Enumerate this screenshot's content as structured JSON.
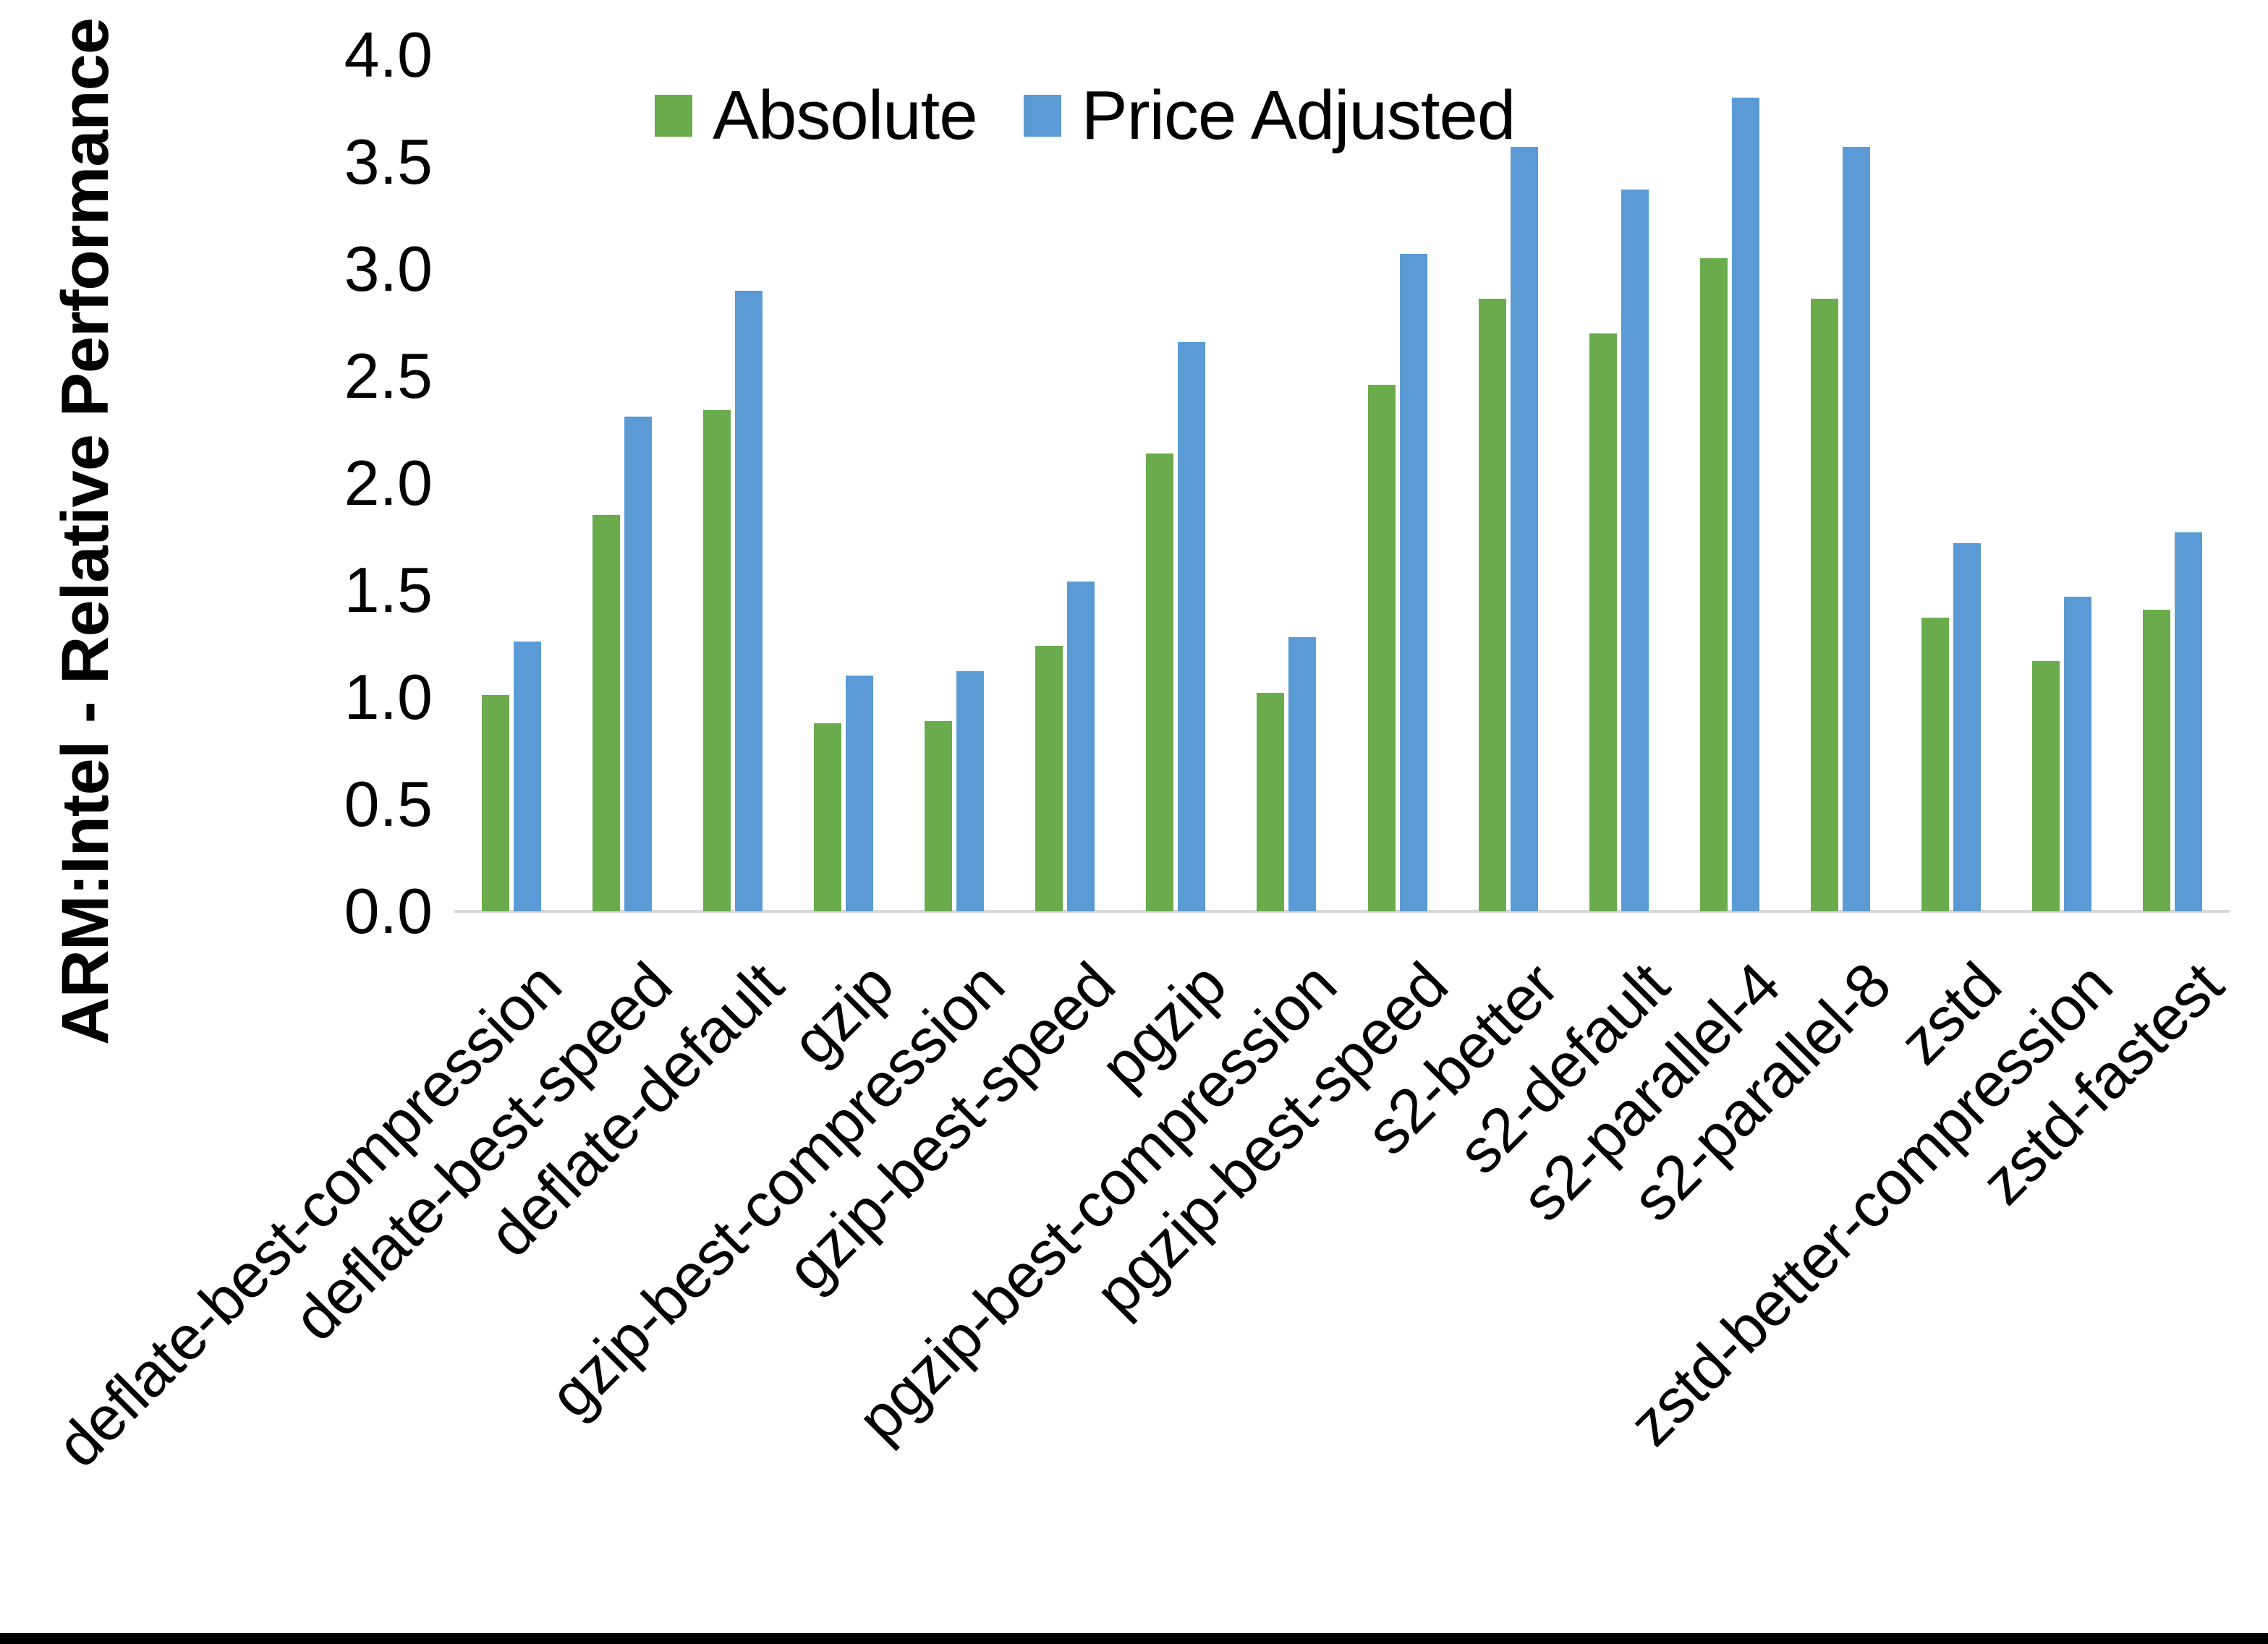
{
  "chart_data": {
    "type": "bar",
    "title": "",
    "ylabel": "ARM:Intel - Relative Performance",
    "xlabel": "",
    "ylim": [
      0.0,
      4.0
    ],
    "ytick_step": 0.5,
    "yticks": [
      "4.0",
      "3.5",
      "3.0",
      "2.5",
      "2.0",
      "1.5",
      "1.0",
      "0.5",
      "0.0"
    ],
    "ytick_values": [
      4.0,
      3.5,
      3.0,
      2.5,
      2.0,
      1.5,
      1.0,
      0.5,
      0.0
    ],
    "grid": false,
    "legend_position": "top-center",
    "categories": [
      "deflate-best-compression",
      "deflate-best-speed",
      "deflate-default",
      "gzip",
      "gzip-best-compression",
      "gzip-best-speed",
      "pgzip",
      "pgzip-best-compression",
      "pgzip-best-speed",
      "s2-better",
      "s2-default",
      "s2-parallel-4",
      "s2-parallel-8",
      "zstd",
      "zstd-better-compression",
      "zstd-fastest"
    ],
    "series": [
      {
        "name": "Absolute",
        "color": "#6AAB4C",
        "values": [
          1.01,
          1.85,
          2.34,
          0.88,
          0.89,
          1.24,
          2.14,
          1.02,
          2.46,
          2.86,
          2.7,
          3.05,
          2.86,
          1.37,
          1.17,
          1.41
        ]
      },
      {
        "name": "Price Adjusted",
        "color": "#5B9BD5",
        "values": [
          1.26,
          2.31,
          2.9,
          1.1,
          1.12,
          1.54,
          2.66,
          1.28,
          3.07,
          3.57,
          3.37,
          3.8,
          3.57,
          1.72,
          1.47,
          1.77
        ]
      }
    ]
  },
  "colors": {
    "background": "#FFFFFF",
    "axis_line": "#D8D8D8",
    "text": "#000000",
    "bottom_border": "#000000"
  }
}
